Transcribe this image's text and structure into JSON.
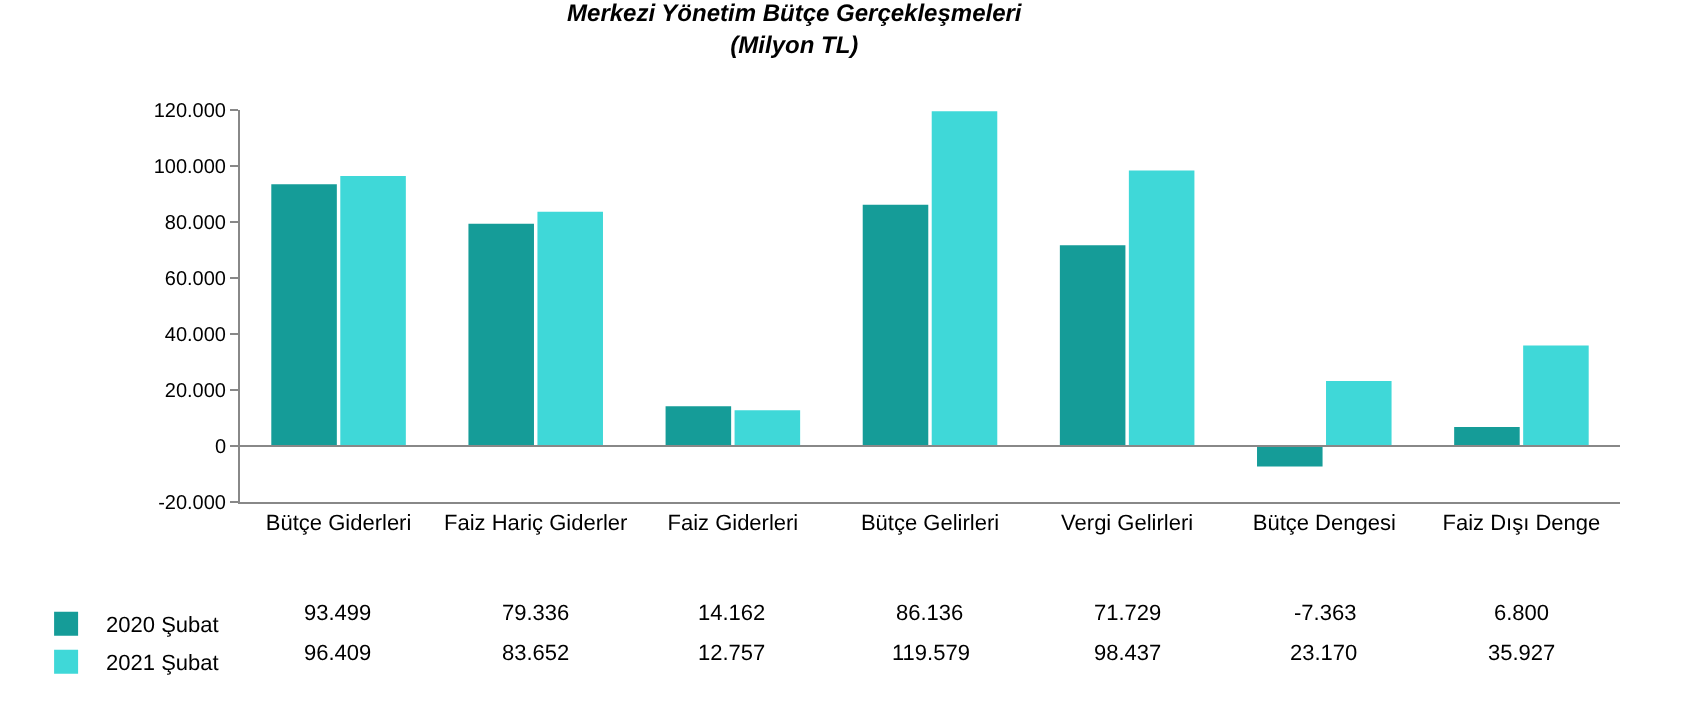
{
  "chart_data": {
    "type": "bar",
    "title": "Merkezi Yönetim Bütçe Gerçekleşmeleri",
    "subtitle": "(Milyon TL)",
    "categories": [
      "Bütçe Giderleri",
      "Faiz Hariç Giderler",
      "Faiz Giderleri",
      "Bütçe Gelirleri",
      "Vergi Gelirleri",
      "Bütçe Dengesi",
      "Faiz Dışı Denge"
    ],
    "series": [
      {
        "name": "2020 Şubat",
        "color": "#159c98",
        "values": [
          93499,
          79336,
          14162,
          86136,
          71729,
          -7363,
          6800
        ],
        "value_labels": [
          "93.499",
          "79.336",
          "14.162",
          "86.136",
          "71.729",
          "-7.363",
          "6.800"
        ]
      },
      {
        "name": "2021 Şubat",
        "color": "#3fd8d8",
        "values": [
          96409,
          83652,
          12757,
          119579,
          98437,
          23170,
          35927
        ],
        "value_labels": [
          "96.409",
          "83.652",
          "12.757",
          "119.579",
          "98.437",
          "23.170",
          "35.927"
        ]
      }
    ],
    "ylim": [
      -20000,
      120000
    ],
    "yticks": [
      {
        "value": -20000,
        "label": "-20.000"
      },
      {
        "value": 0,
        "label": "0"
      },
      {
        "value": 20000,
        "label": "20.000"
      },
      {
        "value": 40000,
        "label": "40.000"
      },
      {
        "value": 60000,
        "label": "60.000"
      },
      {
        "value": 80000,
        "label": "80.000"
      },
      {
        "value": 100000,
        "label": "100.000"
      },
      {
        "value": 120000,
        "label": "120.000"
      }
    ],
    "ref_lines": [
      {
        "axis": "y",
        "value": 0,
        "color": "#888888"
      }
    ],
    "grid": false,
    "legend": "bottom left"
  }
}
